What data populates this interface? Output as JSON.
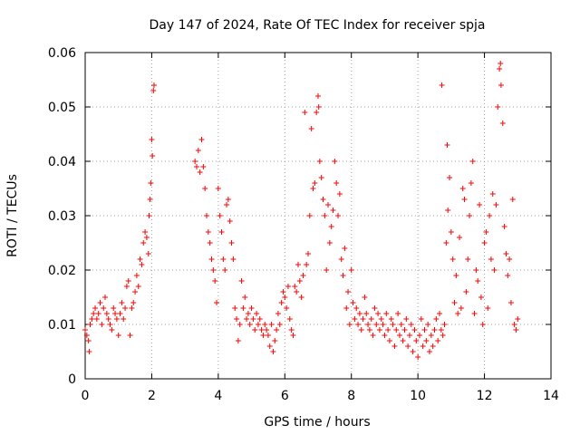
{
  "chart_data": {
    "type": "scatter",
    "title": "Day 147 of 2024, Rate Of TEC Index for receiver spja",
    "xlabel": "GPS time / hours",
    "ylabel": "ROTI / TECUs",
    "xlim": [
      0,
      14
    ],
    "ylim": [
      0,
      0.06
    ],
    "xticks": [
      0,
      2,
      4,
      6,
      8,
      10,
      12,
      14
    ],
    "xtick_labels": [
      "0",
      "2",
      "4",
      "6",
      "8",
      "10",
      "12",
      "14"
    ],
    "yticks": [
      0,
      0.01,
      0.02,
      0.03,
      0.04,
      0.05,
      0.06
    ],
    "ytick_labels": [
      "0",
      "0.01",
      "0.02",
      "0.03",
      "0.04",
      "0.05",
      "0.06"
    ],
    "grid": true,
    "marker": "+",
    "color": "#ff0000",
    "series": [
      {
        "name": "ROTI",
        "points": [
          [
            0.0,
            0.009
          ],
          [
            0.05,
            0.008
          ],
          [
            0.1,
            0.007
          ],
          [
            0.12,
            0.005
          ],
          [
            0.15,
            0.01
          ],
          [
            0.2,
            0.011
          ],
          [
            0.25,
            0.012
          ],
          [
            0.3,
            0.013
          ],
          [
            0.35,
            0.011
          ],
          [
            0.4,
            0.012
          ],
          [
            0.45,
            0.014
          ],
          [
            0.5,
            0.01
          ],
          [
            0.55,
            0.013
          ],
          [
            0.6,
            0.015
          ],
          [
            0.65,
            0.012
          ],
          [
            0.7,
            0.011
          ],
          [
            0.75,
            0.01
          ],
          [
            0.8,
            0.009
          ],
          [
            0.85,
            0.013
          ],
          [
            0.9,
            0.012
          ],
          [
            0.95,
            0.011
          ],
          [
            1.0,
            0.008
          ],
          [
            1.05,
            0.012
          ],
          [
            1.1,
            0.014
          ],
          [
            1.15,
            0.011
          ],
          [
            1.2,
            0.013
          ],
          [
            1.25,
            0.017
          ],
          [
            1.3,
            0.018
          ],
          [
            1.35,
            0.008
          ],
          [
            1.4,
            0.013
          ],
          [
            1.45,
            0.014
          ],
          [
            1.5,
            0.016
          ],
          [
            1.55,
            0.019
          ],
          [
            1.6,
            0.017
          ],
          [
            1.65,
            0.022
          ],
          [
            1.7,
            0.021
          ],
          [
            1.75,
            0.025
          ],
          [
            1.8,
            0.027
          ],
          [
            1.85,
            0.026
          ],
          [
            1.9,
            0.023
          ],
          [
            1.92,
            0.03
          ],
          [
            1.95,
            0.033
          ],
          [
            1.97,
            0.036
          ],
          [
            2.0,
            0.044
          ],
          [
            2.02,
            0.041
          ],
          [
            2.05,
            0.053
          ],
          [
            2.07,
            0.054
          ],
          [
            3.3,
            0.04
          ],
          [
            3.35,
            0.039
          ],
          [
            3.4,
            0.042
          ],
          [
            3.45,
            0.038
          ],
          [
            3.5,
            0.044
          ],
          [
            3.55,
            0.039
          ],
          [
            3.6,
            0.035
          ],
          [
            3.65,
            0.03
          ],
          [
            3.7,
            0.027
          ],
          [
            3.75,
            0.025
          ],
          [
            3.8,
            0.022
          ],
          [
            3.85,
            0.02
          ],
          [
            3.9,
            0.018
          ],
          [
            3.95,
            0.014
          ],
          [
            4.0,
            0.035
          ],
          [
            4.05,
            0.03
          ],
          [
            4.1,
            0.027
          ],
          [
            4.15,
            0.022
          ],
          [
            4.2,
            0.02
          ],
          [
            4.25,
            0.032
          ],
          [
            4.3,
            0.033
          ],
          [
            4.35,
            0.029
          ],
          [
            4.4,
            0.025
          ],
          [
            4.45,
            0.022
          ],
          [
            4.5,
            0.013
          ],
          [
            4.55,
            0.011
          ],
          [
            4.6,
            0.007
          ],
          [
            4.65,
            0.01
          ],
          [
            4.7,
            0.018
          ],
          [
            4.75,
            0.013
          ],
          [
            4.8,
            0.015
          ],
          [
            4.85,
            0.011
          ],
          [
            4.9,
            0.012
          ],
          [
            4.95,
            0.01
          ],
          [
            5.0,
            0.013
          ],
          [
            5.05,
            0.011
          ],
          [
            5.1,
            0.009
          ],
          [
            5.15,
            0.012
          ],
          [
            5.2,
            0.01
          ],
          [
            5.25,
            0.011
          ],
          [
            5.3,
            0.009
          ],
          [
            5.35,
            0.008
          ],
          [
            5.4,
            0.01
          ],
          [
            5.45,
            0.009
          ],
          [
            5.5,
            0.008
          ],
          [
            5.55,
            0.006
          ],
          [
            5.6,
            0.01
          ],
          [
            5.65,
            0.005
          ],
          [
            5.7,
            0.007
          ],
          [
            5.75,
            0.009
          ],
          [
            5.8,
            0.012
          ],
          [
            5.85,
            0.01
          ],
          [
            5.9,
            0.014
          ],
          [
            5.95,
            0.016
          ],
          [
            6.0,
            0.015
          ],
          [
            6.05,
            0.013
          ],
          [
            6.1,
            0.017
          ],
          [
            6.15,
            0.011
          ],
          [
            6.2,
            0.009
          ],
          [
            6.25,
            0.008
          ],
          [
            6.3,
            0.017
          ],
          [
            6.35,
            0.016
          ],
          [
            6.4,
            0.021
          ],
          [
            6.45,
            0.018
          ],
          [
            6.5,
            0.015
          ],
          [
            6.55,
            0.019
          ],
          [
            6.6,
            0.049
          ],
          [
            6.65,
            0.021
          ],
          [
            6.7,
            0.023
          ],
          [
            6.75,
            0.03
          ],
          [
            6.8,
            0.046
          ],
          [
            6.85,
            0.035
          ],
          [
            6.9,
            0.036
          ],
          [
            6.95,
            0.049
          ],
          [
            7.0,
            0.052
          ],
          [
            7.02,
            0.05
          ],
          [
            7.05,
            0.04
          ],
          [
            7.1,
            0.037
          ],
          [
            7.15,
            0.033
          ],
          [
            7.2,
            0.03
          ],
          [
            7.25,
            0.02
          ],
          [
            7.3,
            0.032
          ],
          [
            7.35,
            0.025
          ],
          [
            7.4,
            0.028
          ],
          [
            7.45,
            0.031
          ],
          [
            7.5,
            0.04
          ],
          [
            7.55,
            0.036
          ],
          [
            7.6,
            0.03
          ],
          [
            7.65,
            0.034
          ],
          [
            7.7,
            0.022
          ],
          [
            7.75,
            0.019
          ],
          [
            7.8,
            0.024
          ],
          [
            7.85,
            0.013
          ],
          [
            7.9,
            0.016
          ],
          [
            7.95,
            0.01
          ],
          [
            8.0,
            0.02
          ],
          [
            8.05,
            0.014
          ],
          [
            8.1,
            0.011
          ],
          [
            8.15,
            0.013
          ],
          [
            8.2,
            0.01
          ],
          [
            8.25,
            0.012
          ],
          [
            8.3,
            0.009
          ],
          [
            8.35,
            0.011
          ],
          [
            8.4,
            0.015
          ],
          [
            8.45,
            0.012
          ],
          [
            8.5,
            0.01
          ],
          [
            8.55,
            0.009
          ],
          [
            8.6,
            0.011
          ],
          [
            8.65,
            0.008
          ],
          [
            8.7,
            0.013
          ],
          [
            8.75,
            0.01
          ],
          [
            8.8,
            0.012
          ],
          [
            8.85,
            0.009
          ],
          [
            8.9,
            0.011
          ],
          [
            8.95,
            0.01
          ],
          [
            9.0,
            0.008
          ],
          [
            9.05,
            0.012
          ],
          [
            9.1,
            0.009
          ],
          [
            9.15,
            0.007
          ],
          [
            9.2,
            0.011
          ],
          [
            9.25,
            0.01
          ],
          [
            9.3,
            0.006
          ],
          [
            9.35,
            0.009
          ],
          [
            9.4,
            0.012
          ],
          [
            9.45,
            0.008
          ],
          [
            9.5,
            0.01
          ],
          [
            9.55,
            0.007
          ],
          [
            9.6,
            0.009
          ],
          [
            9.65,
            0.011
          ],
          [
            9.7,
            0.006
          ],
          [
            9.75,
            0.008
          ],
          [
            9.8,
            0.01
          ],
          [
            9.85,
            0.005
          ],
          [
            9.9,
            0.009
          ],
          [
            9.95,
            0.007
          ],
          [
            10.0,
            0.004
          ],
          [
            10.05,
            0.008
          ],
          [
            10.1,
            0.011
          ],
          [
            10.15,
            0.006
          ],
          [
            10.2,
            0.009
          ],
          [
            10.25,
            0.007
          ],
          [
            10.3,
            0.01
          ],
          [
            10.35,
            0.005
          ],
          [
            10.4,
            0.008
          ],
          [
            10.45,
            0.006
          ],
          [
            10.5,
            0.009
          ],
          [
            10.55,
            0.011
          ],
          [
            10.6,
            0.007
          ],
          [
            10.65,
            0.012
          ],
          [
            10.7,
            0.009
          ],
          [
            10.72,
            0.054
          ],
          [
            10.75,
            0.008
          ],
          [
            10.8,
            0.01
          ],
          [
            10.85,
            0.025
          ],
          [
            10.88,
            0.043
          ],
          [
            10.9,
            0.031
          ],
          [
            10.95,
            0.037
          ],
          [
            11.0,
            0.027
          ],
          [
            11.05,
            0.022
          ],
          [
            11.1,
            0.014
          ],
          [
            11.15,
            0.019
          ],
          [
            11.2,
            0.012
          ],
          [
            11.25,
            0.026
          ],
          [
            11.3,
            0.013
          ],
          [
            11.35,
            0.035
          ],
          [
            11.4,
            0.033
          ],
          [
            11.45,
            0.016
          ],
          [
            11.5,
            0.022
          ],
          [
            11.55,
            0.03
          ],
          [
            11.6,
            0.036
          ],
          [
            11.65,
            0.04
          ],
          [
            11.7,
            0.012
          ],
          [
            11.75,
            0.02
          ],
          [
            11.8,
            0.018
          ],
          [
            11.85,
            0.032
          ],
          [
            11.9,
            0.015
          ],
          [
            11.95,
            0.01
          ],
          [
            12.0,
            0.025
          ],
          [
            12.05,
            0.027
          ],
          [
            12.1,
            0.013
          ],
          [
            12.15,
            0.03
          ],
          [
            12.2,
            0.022
          ],
          [
            12.25,
            0.034
          ],
          [
            12.3,
            0.02
          ],
          [
            12.35,
            0.032
          ],
          [
            12.4,
            0.05
          ],
          [
            12.45,
            0.057
          ],
          [
            12.48,
            0.058
          ],
          [
            12.5,
            0.054
          ],
          [
            12.55,
            0.047
          ],
          [
            12.6,
            0.028
          ],
          [
            12.65,
            0.023
          ],
          [
            12.7,
            0.019
          ],
          [
            12.75,
            0.022
          ],
          [
            12.8,
            0.014
          ],
          [
            12.85,
            0.033
          ],
          [
            12.9,
            0.01
          ],
          [
            12.95,
            0.009
          ],
          [
            13.0,
            0.011
          ]
        ]
      }
    ]
  }
}
